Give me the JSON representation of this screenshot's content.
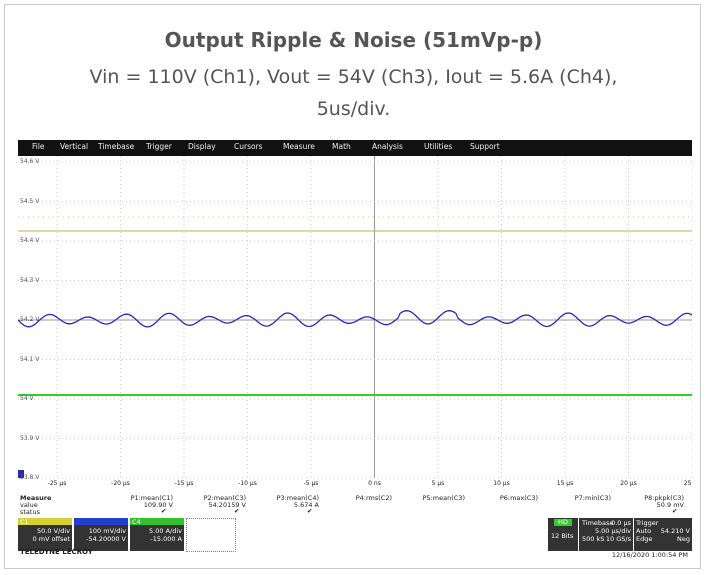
{
  "caption": {
    "title": "Output Ripple & Noise (51mVp-p)",
    "subtitle_lines": [
      "Vin = 110V (Ch1), Vout = 54V (Ch3), Iout = 5.6A (Ch4),",
      "5us/div."
    ]
  },
  "menu": [
    "File",
    "Vertical",
    "Timebase",
    "Trigger",
    "Display",
    "Cursors",
    "Measure",
    "Math",
    "Analysis",
    "Utilities",
    "Support"
  ],
  "y_labels": [
    "54.6 V",
    "54.5 V",
    "54.4 V",
    "54.3 V",
    "54.2 V",
    "54.1 V",
    "54 V",
    "53.9 V",
    "53.8 V"
  ],
  "x_labels": [
    "-25 µs",
    "-20 µs",
    "-15 µs",
    "-10 µs",
    "-5 µs",
    "0 ns",
    "5 µs",
    "10 µs",
    "15 µs",
    "20 µs",
    "25 µs"
  ],
  "measure": {
    "header": "Measure",
    "value_label": "value",
    "status_label": "status",
    "params": [
      {
        "name": "P1:mean(C1)",
        "value": "109.90 V"
      },
      {
        "name": "P2:mean(C3)",
        "value": "54.20159 V"
      },
      {
        "name": "P3:mean(C4)",
        "value": "5.674 A"
      },
      {
        "name": "P4:rms(C2)"
      },
      {
        "name": "P5:mean(C3)"
      },
      {
        "name": "P6:max(C3)"
      },
      {
        "name": "P7:min(C3)"
      },
      {
        "name": "P8:pkpk(C3)",
        "value": "50.9 mV"
      }
    ]
  },
  "channels": [
    {
      "label": "C1",
      "scale": "50.0 V/div",
      "offset": "0 mV offset"
    },
    {
      "scale": "100 mV/div",
      "offset": "-54.20000 V"
    },
    {
      "label": "C4",
      "scale": "5.00 A/div",
      "offset": "-15.000 A"
    }
  ],
  "acquisition": {
    "hd": "HD",
    "bits": "12 Bits",
    "timebase": "Timebase",
    "delay": "0.0 µs",
    "tdiv": "5.00 µs/div",
    "samples": "500 kS",
    "rate": "10 GS/s",
    "trigger": "Trigger",
    "mode": "Auto",
    "level": "54.210 V",
    "type": "Edge",
    "slope": "Neg"
  },
  "brand": "TELEDYNE LECROY",
  "timestamp": "12/16/2020 1:00:54 PM"
}
